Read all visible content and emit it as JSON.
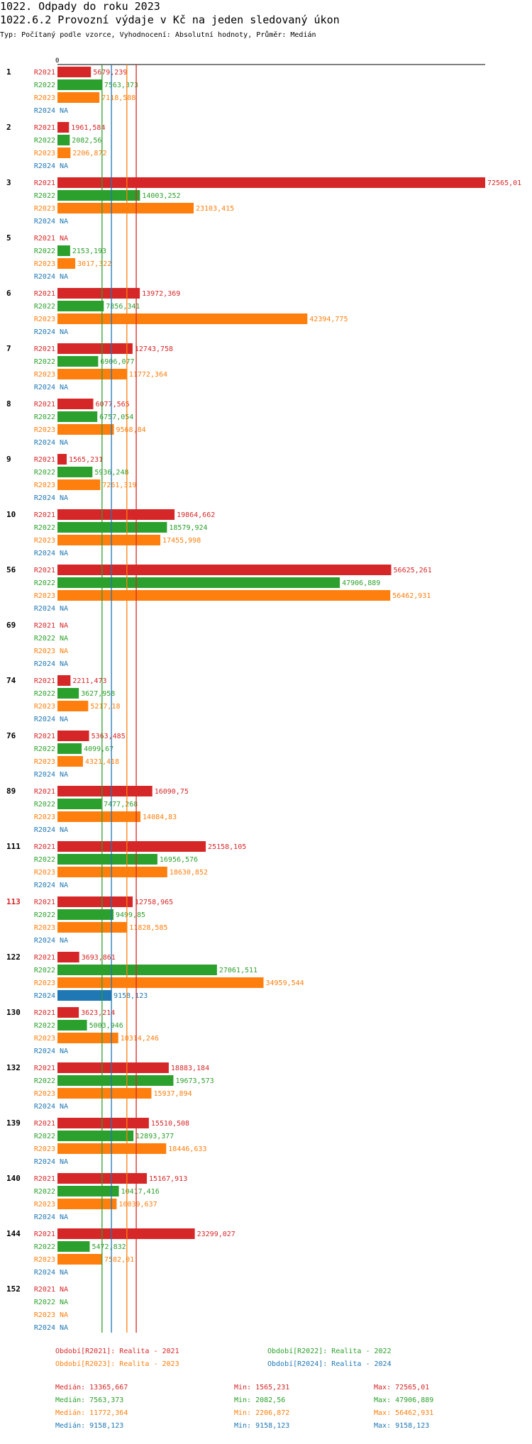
{
  "header": {
    "title": "1022. Odpady do roku 2023",
    "subtitle": "1022.6.2 Provozní výdaje v Kč na jeden sledovaný úkon",
    "info": "Typ: Počítaný podle vzorce, Vyhodnocení: Absolutní hodnoty, Průměr: Medián"
  },
  "colors": {
    "R2021": "#d62728",
    "R2022": "#2ca02c",
    "R2023": "#ff7f0e",
    "R2024": "#1f77b4",
    "axis": "#000000",
    "highlight_group": "#d62728"
  },
  "chart_data": {
    "type": "bar",
    "orientation": "horizontal",
    "title": "1022.6.2 Provozní výdaje v Kč na jeden sledovaný úkon",
    "axis_zero_label": "0",
    "xlim": [
      0,
      72565.01
    ],
    "na_label": "NA",
    "series_names": [
      "R2021",
      "R2022",
      "R2023",
      "R2024"
    ],
    "highlighted_group": "113",
    "groups": [
      {
        "id": "1",
        "values": [
          "5679,239",
          "7563,373",
          "7118,588",
          "NA"
        ]
      },
      {
        "id": "2",
        "values": [
          "1961,584",
          "2082,56",
          "2206,872",
          "NA"
        ]
      },
      {
        "id": "3",
        "values": [
          "72565,01",
          "14003,252",
          "23103,415",
          "NA"
        ]
      },
      {
        "id": "5",
        "values": [
          "NA",
          "2153,193",
          "3017,322",
          "NA"
        ]
      },
      {
        "id": "6",
        "values": [
          "13972,369",
          "7856,341",
          "42394,775",
          "NA"
        ]
      },
      {
        "id": "7",
        "values": [
          "12743,758",
          "6906,077",
          "11772,364",
          "NA"
        ]
      },
      {
        "id": "8",
        "values": [
          "6077,565",
          "6757,054",
          "9568,84",
          "NA"
        ]
      },
      {
        "id": "9",
        "values": [
          "1565,231",
          "5936,248",
          "7261,319",
          "NA"
        ]
      },
      {
        "id": "10",
        "values": [
          "19864,662",
          "18579,924",
          "17455,998",
          "NA"
        ]
      },
      {
        "id": "56",
        "values": [
          "56625,261",
          "47906,889",
          "56462,931",
          "NA"
        ]
      },
      {
        "id": "69",
        "values": [
          "NA",
          "NA",
          "NA",
          "NA"
        ]
      },
      {
        "id": "74",
        "values": [
          "2211,473",
          "3627,958",
          "5217,18",
          "NA"
        ]
      },
      {
        "id": "76",
        "values": [
          "5363,485",
          "4099,67",
          "4321,418",
          "NA"
        ]
      },
      {
        "id": "89",
        "values": [
          "16090,75",
          "7477,268",
          "14084,83",
          "NA"
        ]
      },
      {
        "id": "111",
        "values": [
          "25158,105",
          "16956,576",
          "18630,852",
          "NA"
        ]
      },
      {
        "id": "113",
        "values": [
          "12758,965",
          "9499,85",
          "11828,585",
          "NA"
        ]
      },
      {
        "id": "122",
        "values": [
          "3693,861",
          "27061,511",
          "34959,544",
          "9158,123"
        ]
      },
      {
        "id": "130",
        "values": [
          "3623,214",
          "5003,946",
          "10314,246",
          "NA"
        ]
      },
      {
        "id": "132",
        "values": [
          "18883,184",
          "19673,573",
          "15937,894",
          "NA"
        ]
      },
      {
        "id": "139",
        "values": [
          "15510,508",
          "12893,377",
          "18446,633",
          "NA"
        ]
      },
      {
        "id": "140",
        "values": [
          "15167,913",
          "10417,416",
          "10039,637",
          "NA"
        ]
      },
      {
        "id": "144",
        "values": [
          "23299,027",
          "5472,832",
          "7582,01",
          "NA"
        ]
      },
      {
        "id": "152",
        "values": [
          "NA",
          "NA",
          "NA",
          "NA"
        ]
      }
    ],
    "median_lines": [
      {
        "series": "R2021",
        "value": 13365.667
      },
      {
        "series": "R2022",
        "value": 7563.373
      },
      {
        "series": "R2023",
        "value": 11772.364
      },
      {
        "series": "R2024",
        "value": 9158.123
      }
    ]
  },
  "legend": [
    {
      "series": "R2021",
      "label": "Období[R2021]: Realita - 2021"
    },
    {
      "series": "R2022",
      "label": "Období[R2022]: Realita - 2022"
    },
    {
      "series": "R2023",
      "label": "Období[R2023]: Realita - 2023"
    },
    {
      "series": "R2024",
      "label": "Období[R2024]: Realita - 2024"
    }
  ],
  "stats": [
    {
      "series": "R2021",
      "median": "Medián: 13365,667",
      "min": "Min: 1565,231",
      "max": "Max: 72565,01"
    },
    {
      "series": "R2022",
      "median": "Medián: 7563,373",
      "min": "Min: 2082,56",
      "max": "Max: 47906,889"
    },
    {
      "series": "R2023",
      "median": "Medián: 11772,364",
      "min": "Min: 2206,872",
      "max": "Max: 56462,931"
    },
    {
      "series": "R2024",
      "median": "Medián: 9158,123",
      "min": "Min: 9158,123",
      "max": "Max: 9158,123"
    }
  ]
}
